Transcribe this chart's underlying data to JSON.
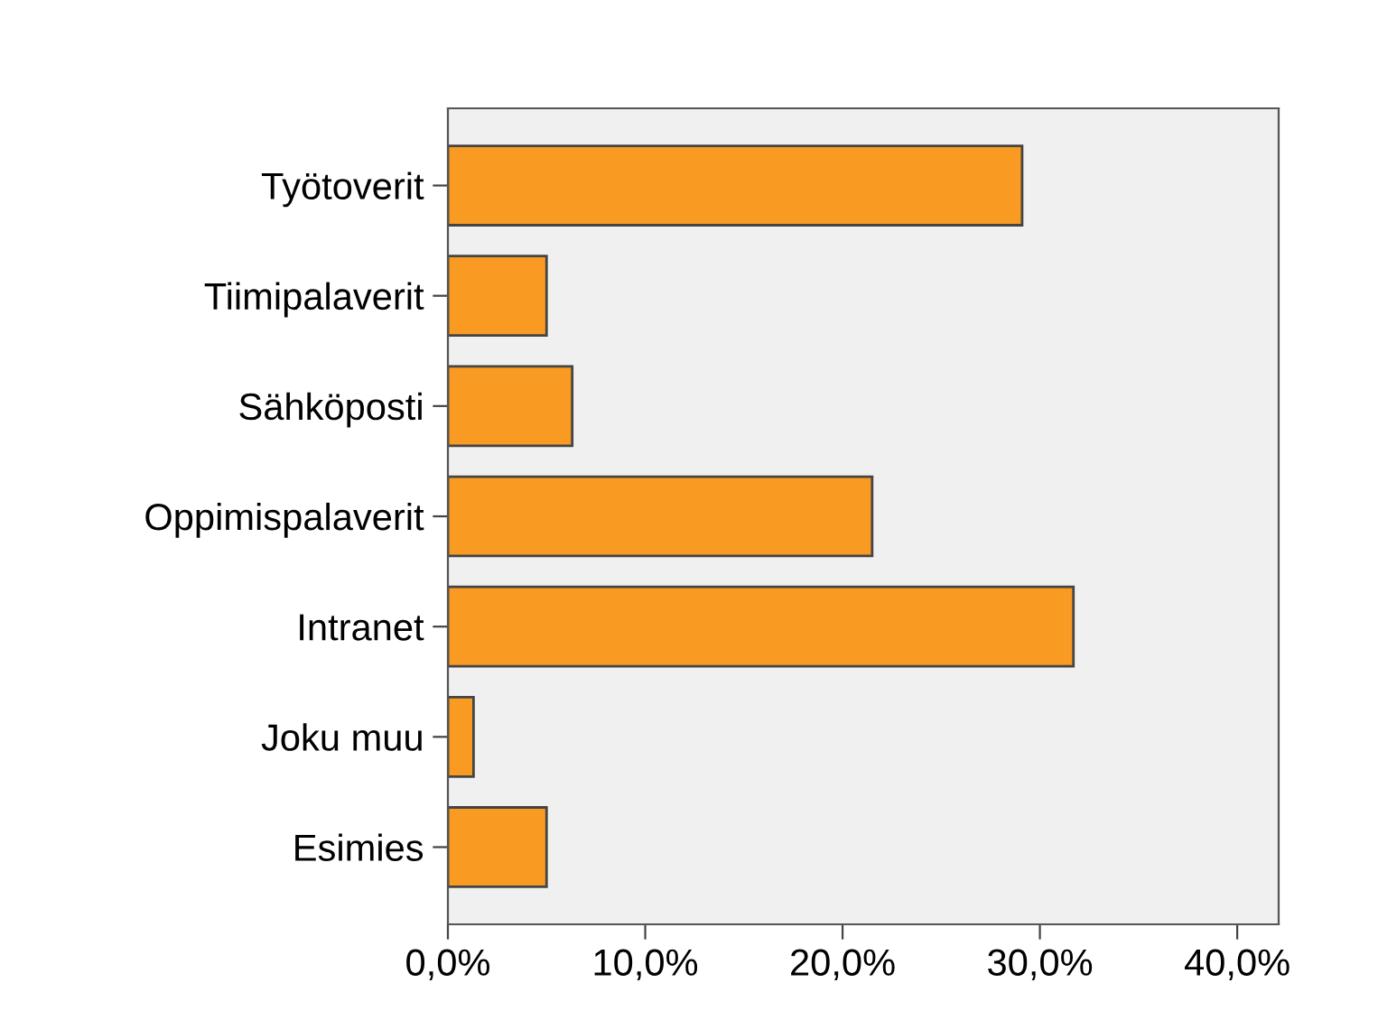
{
  "chart_data": {
    "type": "bar",
    "orientation": "horizontal",
    "categories": [
      "Työtoverit",
      "Tiimipalaverit",
      "Sähköposti",
      "Oppimispalaverit",
      "Intranet",
      "Joku muu",
      "Esimies"
    ],
    "values": [
      29.1,
      5.0,
      6.3,
      21.5,
      31.7,
      1.3,
      5.0
    ],
    "color": "#f99a22",
    "xlim": [
      0,
      42.1
    ],
    "xticks": [
      {
        "value": 0,
        "label": "0,0%"
      },
      {
        "value": 10,
        "label": "10,0%"
      },
      {
        "value": 20,
        "label": "20,0%"
      },
      {
        "value": 30,
        "label": "30,0%"
      },
      {
        "value": 40,
        "label": "40,0%"
      }
    ],
    "grid": false
  }
}
